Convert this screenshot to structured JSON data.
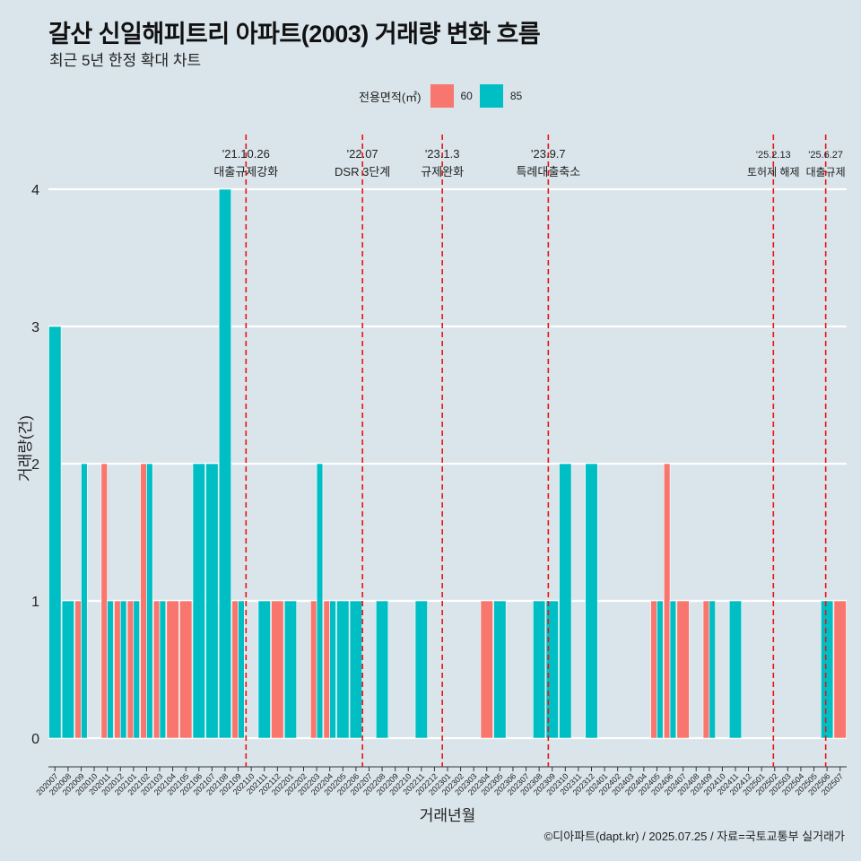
{
  "chart_data": {
    "type": "bar",
    "title": "갈산 신일해피트리 아파트(2003) 거래량 변화 흐름",
    "subtitle": "최근 5년 한정 확대 차트",
    "xlabel": "거래년월",
    "ylabel": "거래량(건)",
    "ylim": [
      0,
      4
    ],
    "yticks": [
      0,
      1,
      2,
      3,
      4
    ],
    "legend": {
      "title": "전용면적(㎡)",
      "entries": [
        {
          "name": "60",
          "color": "#f8766d"
        },
        {
          "name": "85",
          "color": "#00bfc4"
        }
      ]
    },
    "categories": [
      "202007",
      "202008",
      "202009",
      "202010",
      "202011",
      "202012",
      "202101",
      "202102",
      "202103",
      "202104",
      "202105",
      "202106",
      "202107",
      "202108",
      "202109",
      "202110",
      "202111",
      "202112",
      "202201",
      "202202",
      "202203",
      "202204",
      "202205",
      "202206",
      "202207",
      "202208",
      "202209",
      "202210",
      "202211",
      "202212",
      "202301",
      "202302",
      "202303",
      "202304",
      "202305",
      "202306",
      "202307",
      "202308",
      "202309",
      "202310",
      "202311",
      "202312",
      "202401",
      "202402",
      "202403",
      "202404",
      "202405",
      "202406",
      "202407",
      "202408",
      "202409",
      "202410",
      "202411",
      "202412",
      "202501",
      "202502",
      "202503",
      "202504",
      "202505",
      "202506",
      "202507"
    ],
    "series": [
      {
        "name": "60",
        "values": [
          0,
          0,
          1,
          0,
          2,
          1,
          1,
          2,
          1,
          1,
          1,
          0,
          0,
          0,
          1,
          0,
          0,
          1,
          0,
          0,
          1,
          1,
          0,
          0,
          0,
          0,
          0,
          0,
          0,
          0,
          0,
          0,
          0,
          1,
          0,
          0,
          0,
          0,
          0,
          0,
          0,
          0,
          0,
          0,
          0,
          0,
          1,
          2,
          1,
          0,
          1,
          0,
          0,
          0,
          0,
          0,
          0,
          0,
          0,
          0,
          1
        ]
      },
      {
        "name": "85",
        "values": [
          3,
          1,
          2,
          0,
          1,
          1,
          1,
          2,
          1,
          0,
          0,
          2,
          2,
          4,
          1,
          0,
          1,
          0,
          1,
          0,
          2,
          1,
          1,
          1,
          0,
          1,
          0,
          0,
          1,
          0,
          0,
          0,
          0,
          0,
          1,
          0,
          0,
          1,
          1,
          2,
          0,
          2,
          0,
          0,
          0,
          0,
          1,
          1,
          0,
          0,
          1,
          0,
          1,
          0,
          0,
          0,
          0,
          0,
          0,
          1,
          0
        ]
      }
    ],
    "events": [
      {
        "date": "'21.10.26",
        "label": "대출규제강화",
        "x": 15.1
      },
      {
        "date": "'22.07",
        "label": "DSR 3단계",
        "x": 24.0
      },
      {
        "date": "'23.1.3",
        "label": "규제완화",
        "x": 30.1
      },
      {
        "date": "'23.9.7",
        "label": "특례대출축소",
        "x": 38.2
      },
      {
        "date": "'25.2.13",
        "label": "토허제 해제",
        "x": 55.4
      },
      {
        "date": "'25.6.27",
        "label": "대출규제",
        "x": 59.4
      }
    ],
    "caption": "©디아파트(dapt.kr) / 2025.07.25 / 자료=국토교통부 실거래가"
  }
}
